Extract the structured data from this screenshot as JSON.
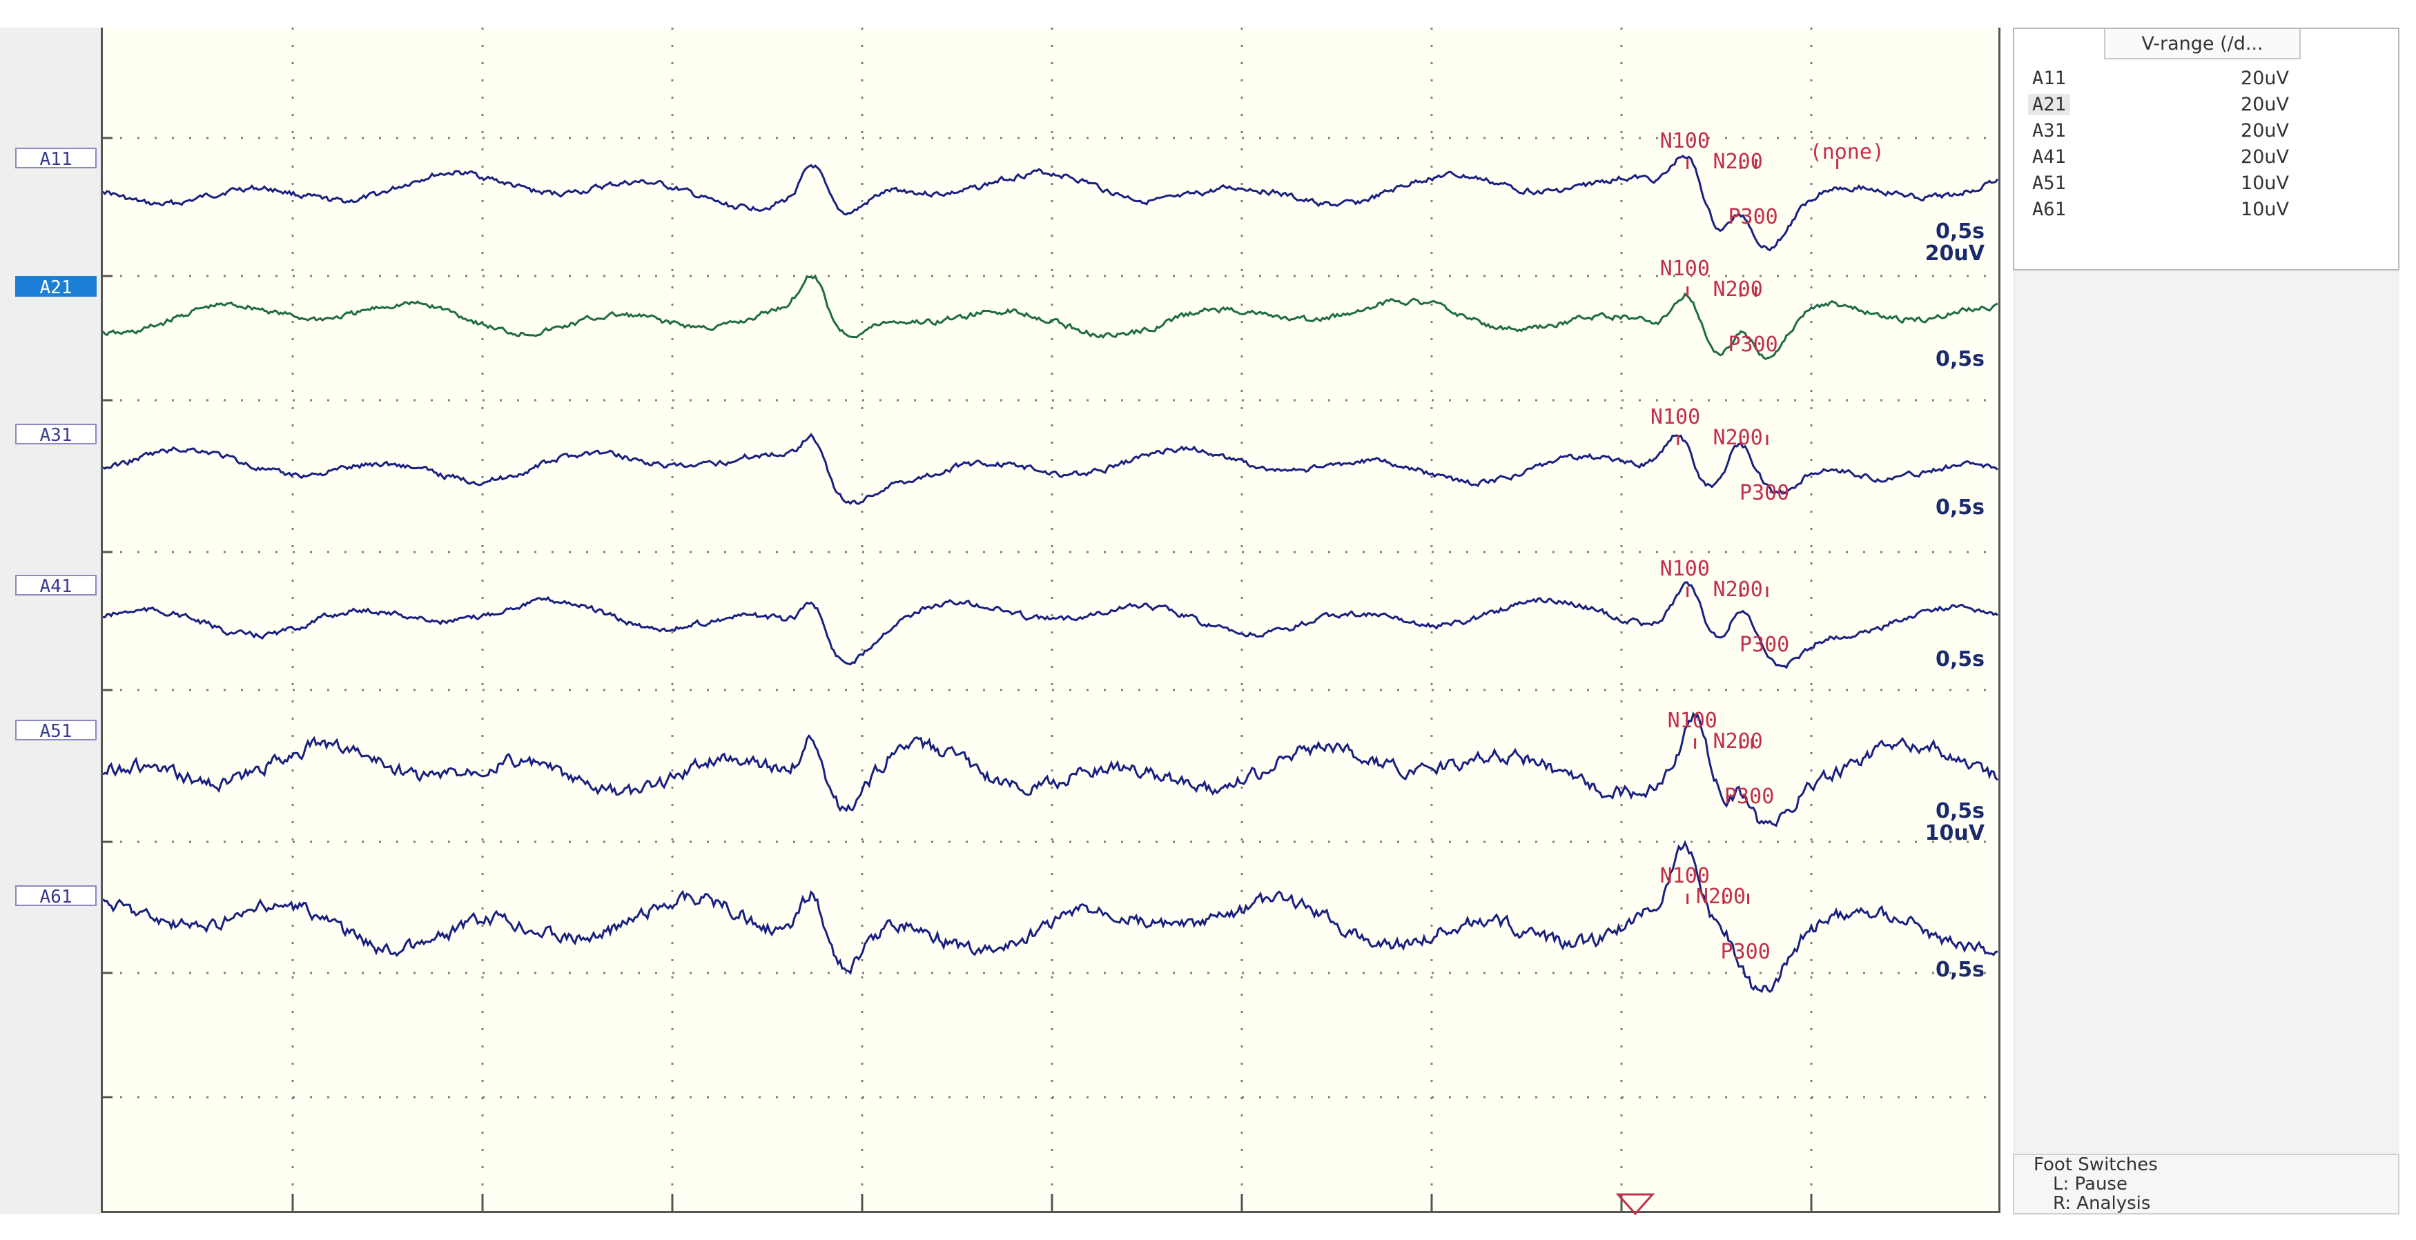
{
  "channels": [
    {
      "name": "A11",
      "selected": false,
      "color": "#1a2080",
      "scale": "0,5s",
      "vrange": "20uV",
      "amp": "20uV",
      "markers": [
        {
          "label": "N100",
          "t": 0.836
        },
        {
          "label": "N200",
          "t": 0.864
        },
        {
          "label": "P300",
          "t": 0.872
        },
        {
          "label": "(none)",
          "t": 0.915
        }
      ]
    },
    {
      "name": "A21",
      "selected": true,
      "color": "#1e6b46",
      "scale": "0,5s",
      "vrange": "20uV",
      "markers": [
        {
          "label": "N100",
          "t": 0.836
        },
        {
          "label": "N200",
          "t": 0.864
        },
        {
          "label": "P300",
          "t": 0.872
        }
      ]
    },
    {
      "name": "A31",
      "selected": false,
      "color": "#1a2080",
      "scale": "0,5s",
      "vrange": "20uV",
      "markers": [
        {
          "label": "N100",
          "t": 0.831
        },
        {
          "label": "N200",
          "t": 0.864
        },
        {
          "label": "P300",
          "t": 0.878
        }
      ]
    },
    {
      "name": "A41",
      "selected": false,
      "color": "#1a2080",
      "scale": "0,5s",
      "vrange": "20uV",
      "markers": [
        {
          "label": "N100",
          "t": 0.836
        },
        {
          "label": "N200",
          "t": 0.864
        },
        {
          "label": "P300",
          "t": 0.878
        }
      ]
    },
    {
      "name": "A51",
      "selected": false,
      "color": "#1a2080",
      "scale": "0,5s",
      "vrange": "10uV",
      "amp": "10uV",
      "markers": [
        {
          "label": "N100",
          "t": 0.84
        },
        {
          "label": "N200",
          "t": 0.864
        },
        {
          "label": "P300",
          "t": 0.87
        }
      ]
    },
    {
      "name": "A61",
      "selected": false,
      "color": "#1a2080",
      "scale": "0,5s",
      "vrange": "10uV",
      "markers": [
        {
          "label": "N100",
          "t": 0.836
        },
        {
          "label": "N200",
          "t": 0.855
        },
        {
          "label": "P300",
          "t": 0.868
        }
      ]
    }
  ],
  "vrange_panel": {
    "header": "V-range (/d..."
  },
  "foot_switches": {
    "title": "Foot Switches",
    "lines": [
      "L:  Pause",
      "R:  Analysis"
    ]
  },
  "colors": {
    "plot_bg": "#fffff4",
    "marker": "#c0304a",
    "grid": "#7f7f7f",
    "selected_tab": "#1b7fd6"
  },
  "icons": {
    "trigger": "trigger-triangle-icon"
  }
}
